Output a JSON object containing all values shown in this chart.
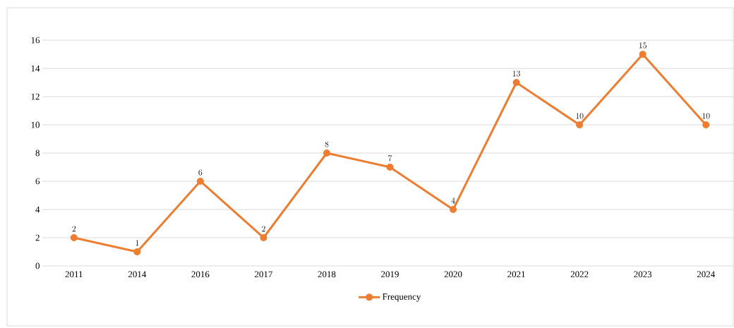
{
  "chart_data": {
    "type": "line",
    "categories": [
      "2011",
      "2014",
      "2016",
      "2017",
      "2018",
      "2019",
      "2020",
      "2021",
      "2022",
      "2023",
      "2024"
    ],
    "series": [
      {
        "name": "Frequency",
        "color": "#ed7d31",
        "values": [
          2,
          1,
          6,
          2,
          8,
          7,
          4,
          13,
          10,
          15,
          10
        ]
      }
    ],
    "ylim": [
      0,
      16
    ],
    "yticks": [
      0,
      2,
      4,
      6,
      8,
      10,
      12,
      14,
      16
    ],
    "grid": "y",
    "legend": "bottom",
    "marker": "circle",
    "line_style": "solid",
    "data_labels": true
  }
}
